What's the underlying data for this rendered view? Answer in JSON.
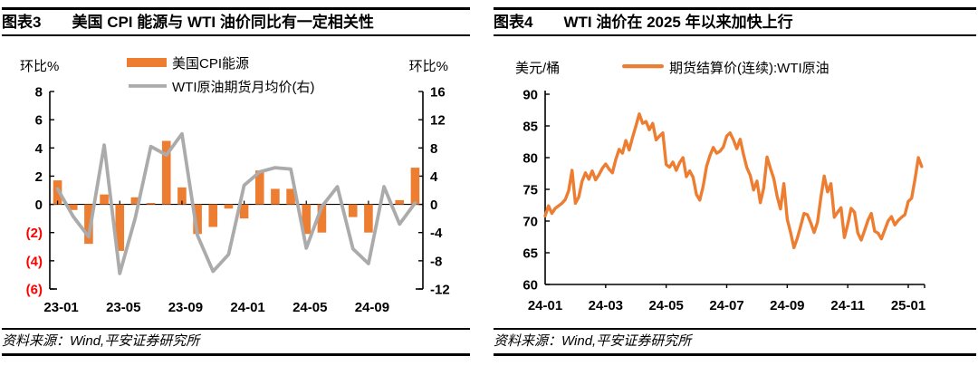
{
  "colors": {
    "orange": "#ED7D31",
    "gray": "#ABABAB",
    "negative_tick_red": "#FF0000",
    "axis_black": "#000000"
  },
  "panels": [
    {
      "fig_label": "图表3",
      "title": "美国 CPI 能源与 WTI 油价同比有一定相关性",
      "source": "资料来源：Wind,平安证券研究所"
    },
    {
      "fig_label": "图表4",
      "title": "WTI 油价在 2025 年以来加快上行",
      "source": "资料来源：Wind,平安证券研究所"
    }
  ],
  "chart_data": [
    {
      "type": "bar",
      "subtype": "bar-plus-line-dual-axis",
      "title": "美国 CPI 能源与 WTI 油价同比有一定相关性",
      "categories": [
        "23-01",
        "23-02",
        "23-03",
        "23-04",
        "23-05",
        "23-06",
        "23-07",
        "23-08",
        "23-09",
        "23-10",
        "23-11",
        "23-12",
        "24-01",
        "24-02",
        "24-03",
        "24-04",
        "24-05",
        "24-06",
        "24-07",
        "24-08",
        "24-09",
        "24-10",
        "24-11",
        "24-12"
      ],
      "series": [
        {
          "name": "美国CPI能源",
          "kind": "bar",
          "axis": "left",
          "color": "#ED7D31",
          "values": [
            1.7,
            -0.4,
            -2.8,
            0.7,
            -3.3,
            0.5,
            0.1,
            4.5,
            1.2,
            -2.1,
            -1.6,
            -0.3,
            -1.0,
            2.4,
            1.1,
            1.1,
            -2.1,
            -2.0,
            0.0,
            -0.9,
            -2.0,
            0.0,
            0.3,
            2.6
          ]
        },
        {
          "name": "WTI原油期货月均价(右)",
          "kind": "line",
          "axis": "right",
          "color": "#ABABAB",
          "values": [
            2.2,
            -1.7,
            -4.6,
            8.4,
            -9.8,
            -1.9,
            8.2,
            7.0,
            10.0,
            -4.4,
            -9.5,
            -7.1,
            2.7,
            4.6,
            5.2,
            5.0,
            -6.2,
            -0.3,
            2.5,
            -6.3,
            -8.4,
            2.5,
            -2.8,
            0.2
          ]
        }
      ],
      "left_axis": {
        "title": "环比%",
        "min": -6,
        "max": 8,
        "tick_step": 2,
        "negative_format": "red-parentheses"
      },
      "right_axis": {
        "title": "环比%",
        "min": -12,
        "max": 16,
        "tick_step": 4
      },
      "x_tick_labels": [
        "23-01",
        "23-05",
        "23-09",
        "24-01",
        "24-05",
        "24-09"
      ],
      "x_tick_month_indexes": [
        0,
        4,
        8,
        12,
        16,
        20
      ],
      "legend_position": "top",
      "grid": false
    },
    {
      "type": "line",
      "title": "WTI 油价在 2025 年以来加快上行",
      "series": [
        {
          "name": "期货结算价(连续):WTI原油",
          "color": "#ED7D31",
          "points_per_month": 9,
          "values": [
            70.8,
            72.4,
            71.2,
            72.0,
            72.4,
            72.8,
            73.4,
            74.8,
            78.0,
            72.8,
            73.8,
            76.3,
            77.6,
            76.6,
            77.9,
            76.5,
            77.3,
            78.3,
            79.0,
            78.2,
            77.6,
            79.7,
            81.3,
            80.7,
            82.7,
            81.2,
            83.2,
            85.0,
            86.9,
            85.4,
            85.7,
            84.4,
            85.4,
            82.8,
            83.4,
            83.9,
            78.9,
            78.5,
            79.3,
            78.0,
            79.2,
            80.0,
            77.0,
            77.9,
            76.9,
            74.2,
            73.3,
            75.5,
            78.6,
            80.3,
            81.6,
            80.7,
            81.0,
            81.7,
            83.4,
            83.9,
            82.8,
            81.4,
            82.9,
            80.5,
            78.4,
            77.2,
            74.9,
            76.3,
            72.9,
            75.2,
            80.1,
            78.3,
            76.7,
            73.9,
            71.9,
            75.9,
            70.3,
            68.2,
            65.8,
            67.3,
            69.2,
            71.2,
            71.0,
            69.7,
            68.2,
            69.8,
            73.7,
            77.1,
            74.6,
            75.9,
            70.6,
            71.4,
            72.1,
            67.4,
            69.5,
            72.0,
            71.4,
            68.1,
            67.0,
            68.5,
            70.1,
            71.2,
            68.4,
            68.1,
            67.2,
            68.6,
            70.0,
            70.7,
            69.4,
            70.1,
            70.6,
            71.0,
            73.1,
            73.6,
            76.6,
            80.0,
            78.6
          ]
        }
      ],
      "y_axis": {
        "title": "美元/桶",
        "min": 60,
        "max": 90,
        "tick_step": 5
      },
      "x_tick_labels": [
        "24-01",
        "24-03",
        "24-05",
        "24-07",
        "24-09",
        "24-11",
        "25-01"
      ],
      "x_months_per_tick": 2,
      "grid": false,
      "legend_position": "top"
    }
  ]
}
